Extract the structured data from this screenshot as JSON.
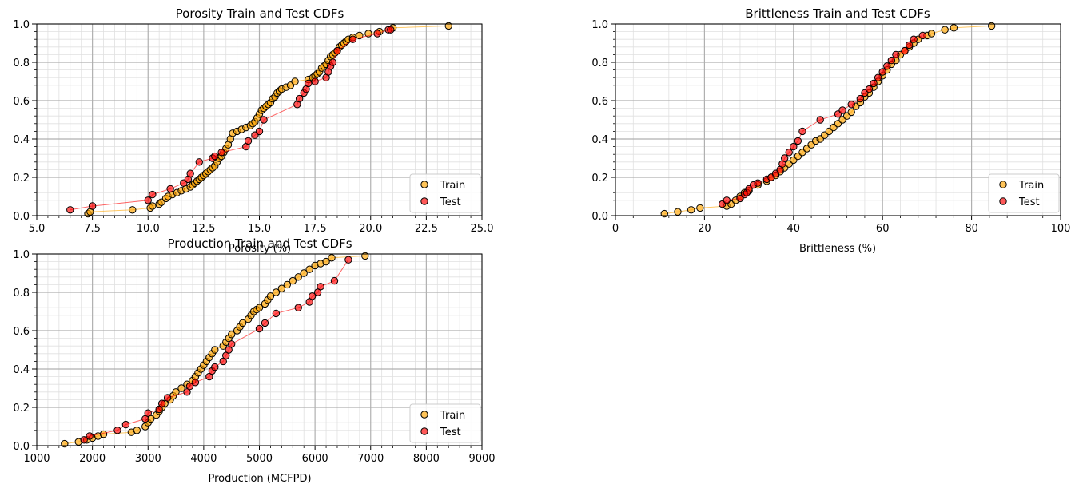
{
  "legend_labels": {
    "train": "Train",
    "test": "Test"
  },
  "colors": {
    "train": "#FFA500",
    "test": "#FF0000",
    "edge": "#000000",
    "grid_major": "#b0b0b0",
    "grid_minor": "#e0e0e0"
  },
  "chart_data": [
    {
      "type": "scatter",
      "title": "Porosity Train and Test CDFs",
      "xlabel": "Porosity (%)",
      "ylabel": "",
      "xlim": [
        5.0,
        25.0
      ],
      "ylim": [
        0.0,
        1.0
      ],
      "xticks": [
        "5.0",
        "7.5",
        "10.0",
        "12.5",
        "15.0",
        "17.5",
        "20.0",
        "22.5",
        "25.0"
      ],
      "yticks": [
        "0.0",
        "0.2",
        "0.4",
        "0.6",
        "0.8",
        "1.0"
      ],
      "grid": true,
      "legend_position": "lower-right",
      "series": [
        {
          "name": "Train",
          "color": "#FFA500",
          "x": [
            7.3,
            7.4,
            9.3,
            10.1,
            10.2,
            10.5,
            10.6,
            10.8,
            10.9,
            11.1,
            11.3,
            11.5,
            11.7,
            11.9,
            12.0,
            12.1,
            12.2,
            12.3,
            12.4,
            12.5,
            12.6,
            12.7,
            12.8,
            12.9,
            13.0,
            13.1,
            13.2,
            13.3,
            13.4,
            13.5,
            13.6,
            13.7,
            13.8,
            14.0,
            14.2,
            14.4,
            14.6,
            14.7,
            14.8,
            14.9,
            15.0,
            15.1,
            15.2,
            15.3,
            15.4,
            15.5,
            15.6,
            15.7,
            15.8,
            15.9,
            16.0,
            16.2,
            16.4,
            16.6,
            17.2,
            17.4,
            17.5,
            17.6,
            17.7,
            17.8,
            17.9,
            18.0,
            18.1,
            18.2,
            18.3,
            18.4,
            18.5,
            18.6,
            18.7,
            18.8,
            18.9,
            19.0,
            19.2,
            19.5,
            19.9,
            20.4,
            21.0,
            23.5
          ],
          "y": [
            0.01,
            0.02,
            0.03,
            0.04,
            0.05,
            0.06,
            0.07,
            0.09,
            0.1,
            0.11,
            0.12,
            0.13,
            0.14,
            0.15,
            0.16,
            0.17,
            0.18,
            0.19,
            0.2,
            0.21,
            0.22,
            0.23,
            0.24,
            0.25,
            0.26,
            0.28,
            0.3,
            0.31,
            0.33,
            0.35,
            0.37,
            0.4,
            0.43,
            0.44,
            0.45,
            0.46,
            0.47,
            0.48,
            0.49,
            0.51,
            0.53,
            0.55,
            0.56,
            0.57,
            0.58,
            0.59,
            0.61,
            0.62,
            0.64,
            0.65,
            0.66,
            0.67,
            0.68,
            0.7,
            0.71,
            0.72,
            0.73,
            0.74,
            0.75,
            0.77,
            0.78,
            0.79,
            0.81,
            0.83,
            0.84,
            0.85,
            0.86,
            0.88,
            0.89,
            0.9,
            0.91,
            0.92,
            0.93,
            0.94,
            0.95,
            0.96,
            0.98,
            0.99
          ]
        },
        {
          "name": "Test",
          "color": "#FF0000",
          "x": [
            6.5,
            7.5,
            10.0,
            10.2,
            11.0,
            11.6,
            11.8,
            11.9,
            12.3,
            12.9,
            13.0,
            13.3,
            14.4,
            14.5,
            14.8,
            15.0,
            15.2,
            16.7,
            16.8,
            17.0,
            17.1,
            17.2,
            17.5,
            18.0,
            18.1,
            18.2,
            18.3,
            18.5,
            19.2,
            20.3,
            20.8,
            20.9
          ],
          "y": [
            0.03,
            0.05,
            0.08,
            0.11,
            0.14,
            0.17,
            0.19,
            0.22,
            0.28,
            0.3,
            0.31,
            0.33,
            0.36,
            0.39,
            0.42,
            0.44,
            0.5,
            0.58,
            0.61,
            0.64,
            0.66,
            0.69,
            0.7,
            0.72,
            0.75,
            0.78,
            0.8,
            0.86,
            0.92,
            0.95,
            0.97,
            0.97
          ]
        }
      ]
    },
    {
      "type": "scatter",
      "title": "Brittleness Train and Test CDFs",
      "xlabel": "Brittleness (%)",
      "ylabel": "",
      "xlim": [
        0,
        100
      ],
      "ylim": [
        0.0,
        1.0
      ],
      "xticks": [
        "0",
        "20",
        "40",
        "60",
        "80",
        "100"
      ],
      "yticks": [
        "0.0",
        "0.2",
        "0.4",
        "0.6",
        "0.8",
        "1.0"
      ],
      "grid": true,
      "legend_position": "lower-right",
      "series": [
        {
          "name": "Train",
          "color": "#FFA500",
          "x": [
            11,
            14,
            17,
            19,
            25,
            26,
            27,
            28,
            29,
            30,
            32,
            34,
            35,
            36,
            37,
            38,
            39,
            40,
            41,
            42,
            43,
            44,
            45,
            46,
            47,
            48,
            49,
            50,
            51,
            52,
            53,
            54,
            55,
            56,
            57,
            58,
            59,
            60,
            61,
            62,
            63,
            64,
            65,
            66,
            67,
            68,
            70,
            71,
            74,
            76,
            84.5
          ],
          "y": [
            0.01,
            0.02,
            0.03,
            0.04,
            0.05,
            0.06,
            0.08,
            0.1,
            0.12,
            0.13,
            0.16,
            0.18,
            0.2,
            0.21,
            0.23,
            0.25,
            0.27,
            0.29,
            0.31,
            0.33,
            0.35,
            0.37,
            0.39,
            0.4,
            0.42,
            0.44,
            0.46,
            0.48,
            0.5,
            0.52,
            0.54,
            0.57,
            0.59,
            0.62,
            0.64,
            0.67,
            0.7,
            0.73,
            0.76,
            0.79,
            0.81,
            0.84,
            0.86,
            0.88,
            0.9,
            0.92,
            0.94,
            0.95,
            0.97,
            0.98,
            0.99
          ]
        },
        {
          "name": "Test",
          "color": "#FF0000",
          "x": [
            24,
            25,
            28,
            29,
            29.5,
            30,
            31,
            32,
            34,
            35,
            36,
            37,
            37.5,
            38,
            39,
            40,
            41,
            42,
            46,
            50,
            51,
            53,
            55,
            56,
            57,
            58,
            59,
            60,
            61,
            62,
            63,
            65,
            66,
            67,
            69
          ],
          "y": [
            0.06,
            0.08,
            0.09,
            0.11,
            0.12,
            0.14,
            0.16,
            0.17,
            0.19,
            0.2,
            0.22,
            0.24,
            0.27,
            0.3,
            0.33,
            0.36,
            0.39,
            0.44,
            0.5,
            0.53,
            0.55,
            0.58,
            0.61,
            0.64,
            0.66,
            0.69,
            0.72,
            0.75,
            0.78,
            0.81,
            0.84,
            0.86,
            0.89,
            0.92,
            0.94
          ]
        }
      ]
    },
    {
      "type": "scatter",
      "title": "Production Train and Test CDFs",
      "xlabel": "Production (MCFPD)",
      "ylabel": "",
      "xlim": [
        1000,
        9000
      ],
      "ylim": [
        0.0,
        1.0
      ],
      "xticks": [
        "1000",
        "2000",
        "3000",
        "4000",
        "5000",
        "6000",
        "7000",
        "8000",
        "9000"
      ],
      "yticks": [
        "0.0",
        "0.2",
        "0.4",
        "0.6",
        "0.8",
        "1.0"
      ],
      "grid": true,
      "legend_position": "lower-right",
      "series": [
        {
          "name": "Train",
          "color": "#FFA500",
          "x": [
            1500,
            1750,
            1900,
            2000,
            2100,
            2200,
            2700,
            2800,
            2950,
            3000,
            3050,
            3150,
            3200,
            3250,
            3300,
            3400,
            3450,
            3500,
            3600,
            3700,
            3800,
            3850,
            3900,
            3950,
            4000,
            4050,
            4100,
            4150,
            4200,
            4350,
            4400,
            4450,
            4500,
            4600,
            4650,
            4700,
            4800,
            4850,
            4900,
            4950,
            5000,
            5100,
            5150,
            5200,
            5300,
            5400,
            5500,
            5600,
            5700,
            5800,
            5900,
            6000,
            6100,
            6200,
            6300,
            6900
          ],
          "y": [
            0.01,
            0.02,
            0.03,
            0.04,
            0.05,
            0.06,
            0.07,
            0.08,
            0.1,
            0.12,
            0.14,
            0.16,
            0.18,
            0.2,
            0.22,
            0.24,
            0.26,
            0.28,
            0.3,
            0.32,
            0.34,
            0.36,
            0.38,
            0.4,
            0.42,
            0.44,
            0.46,
            0.48,
            0.5,
            0.52,
            0.54,
            0.56,
            0.58,
            0.6,
            0.62,
            0.64,
            0.66,
            0.68,
            0.7,
            0.71,
            0.72,
            0.74,
            0.76,
            0.78,
            0.8,
            0.82,
            0.84,
            0.86,
            0.88,
            0.9,
            0.92,
            0.94,
            0.95,
            0.96,
            0.98,
            0.99
          ]
        },
        {
          "name": "Test",
          "color": "#FF0000",
          "x": [
            1850,
            1950,
            2450,
            2600,
            2950,
            3000,
            3200,
            3250,
            3350,
            3700,
            3750,
            3850,
            4100,
            4150,
            4200,
            4350,
            4400,
            4450,
            4500,
            5000,
            5100,
            5300,
            5700,
            5900,
            5950,
            6050,
            6100,
            6350,
            6600
          ],
          "y": [
            0.03,
            0.05,
            0.08,
            0.11,
            0.14,
            0.17,
            0.19,
            0.22,
            0.25,
            0.28,
            0.31,
            0.33,
            0.36,
            0.39,
            0.41,
            0.44,
            0.47,
            0.5,
            0.53,
            0.61,
            0.64,
            0.69,
            0.72,
            0.75,
            0.78,
            0.8,
            0.83,
            0.86,
            0.97
          ]
        }
      ]
    }
  ]
}
